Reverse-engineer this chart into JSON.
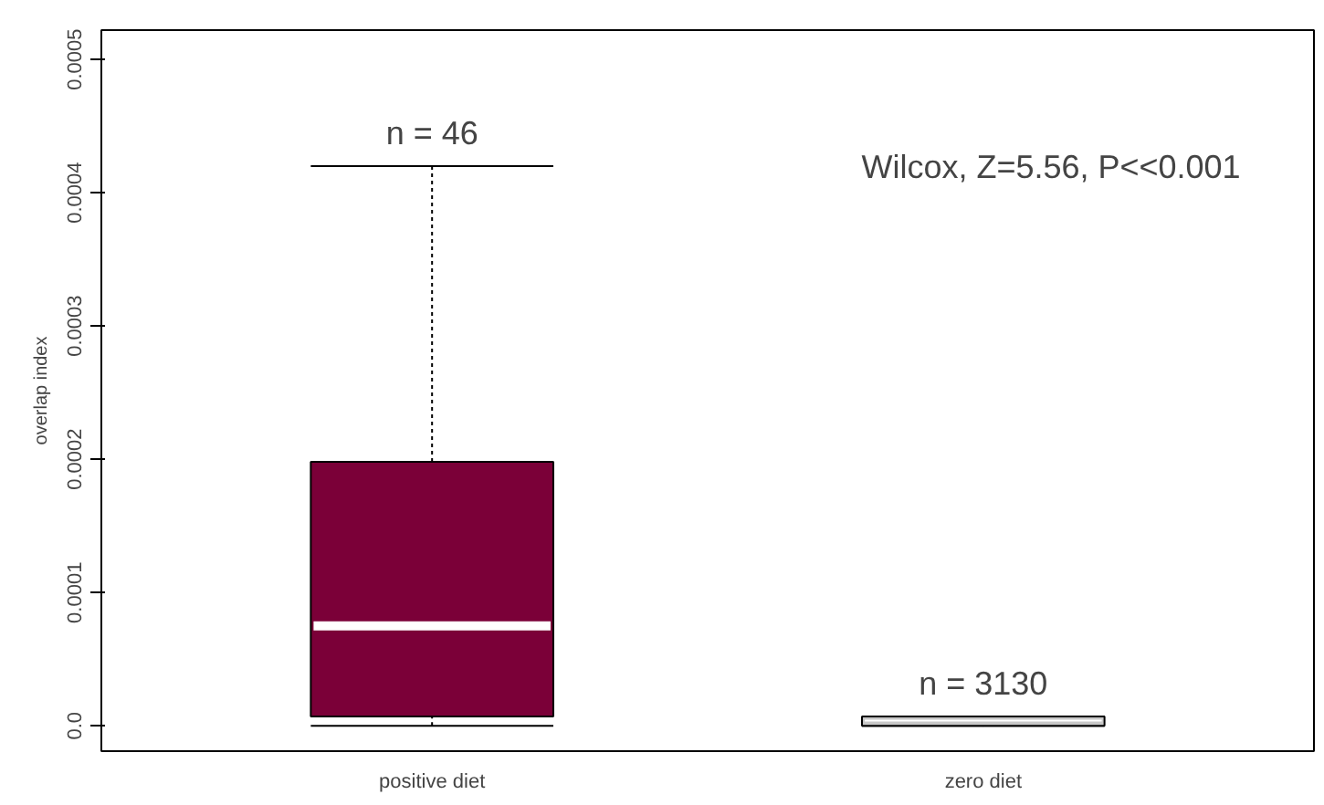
{
  "chart_data": {
    "type": "box",
    "ylabel": "overlap index",
    "categories": [
      "positive diet",
      "zero diet"
    ],
    "colors": [
      "#7b0038",
      "#c8c8c8"
    ],
    "boxes": [
      {
        "low": 0,
        "q1": 7e-06,
        "median": 7.5e-05,
        "q3": 0.000198,
        "high": 0.00042
      },
      {
        "low": 0,
        "q1": 0,
        "median": 4e-06,
        "q3": 7e-06,
        "high": 7e-06
      }
    ],
    "ylim": [
      -1.9e-05,
      0.000522
    ],
    "yticks": [
      {
        "value": 0,
        "label": "0.0"
      },
      0.0001,
      0.0002,
      0.0003,
      0.0004,
      0.0005
    ],
    "grid": false,
    "annotations": [
      "n = 46",
      "n = 3130",
      "Wilcox, Z=5.56, P<<0.001"
    ]
  }
}
